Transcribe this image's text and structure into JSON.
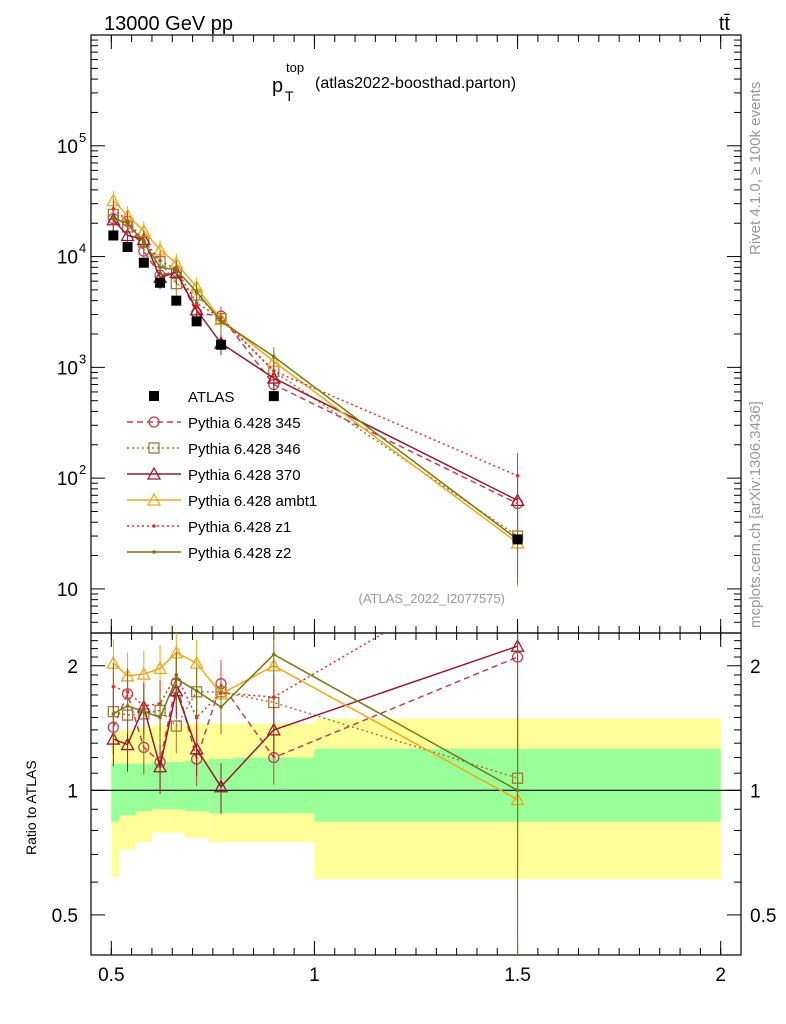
{
  "header": {
    "left": "13000 GeV pp",
    "right": "tt̄",
    "title_main": "p",
    "title_sub": "T",
    "title_sup": "top",
    "title_rest": "(atlas2022-boosthad.parton)"
  },
  "side": {
    "rivet": "Rivet 4.1.0, ≥ 100k events",
    "mcplots": "mcplots.cern.ch [arXiv:1306.3436]"
  },
  "reference": "(ATLAS_2022_I2077575)",
  "ratio_label": "Ratio to ATLAS",
  "chart_data": {
    "type": "line",
    "title": "p_T^top (atlas2022-boosthad.parton)",
    "xlabel": "",
    "ylabel": "",
    "x_axis": {
      "range": [
        0.45,
        2.05
      ],
      "ticks": [
        0.5,
        1,
        1.5,
        2
      ],
      "tick_labels": [
        "0.5",
        "1",
        "1.5",
        "2"
      ]
    },
    "y_axis_main": {
      "scale": "log",
      "range": [
        4,
        1000000
      ],
      "ticks": [
        10,
        100,
        1000,
        10000,
        100000
      ],
      "tick_labels": [
        "10",
        "10^2",
        "10^3",
        "10^4",
        "10^5"
      ]
    },
    "y_axis_ratio": {
      "scale": "log",
      "range": [
        0.4,
        2.4
      ],
      "ticks": [
        0.5,
        1,
        2
      ],
      "tick_labels": [
        "0.5",
        "1",
        "2"
      ]
    },
    "x": [
      0.505,
      0.54,
      0.58,
      0.62,
      0.66,
      0.71,
      0.77,
      0.9,
      1.5
    ],
    "bin_edges": [
      0.5,
      0.52,
      0.56,
      0.6,
      0.64,
      0.68,
      0.74,
      0.8,
      1.0,
      2.0
    ],
    "data": {
      "name": "ATLAS",
      "values": [
        15500,
        12200,
        8800,
        5800,
        4000,
        2600,
        1600,
        550,
        28
      ]
    },
    "band": {
      "inner": [
        [
          0.84,
          1.16
        ],
        [
          0.87,
          1.16
        ],
        [
          0.89,
          1.16
        ],
        [
          0.9,
          1.17
        ],
        [
          0.9,
          1.17
        ],
        [
          0.89,
          1.18
        ],
        [
          0.88,
          1.19
        ],
        [
          0.88,
          1.2
        ],
        [
          0.84,
          1.26
        ]
      ],
      "outer": [
        [
          0.62,
          1.38
        ],
        [
          0.72,
          1.4
        ],
        [
          0.75,
          1.42
        ],
        [
          0.79,
          1.44
        ],
        [
          0.79,
          1.44
        ],
        [
          0.77,
          1.45
        ],
        [
          0.75,
          1.45
        ],
        [
          0.75,
          1.45
        ],
        [
          0.61,
          1.49
        ]
      ]
    },
    "series": [
      {
        "name": "Pythia 6.428 345",
        "color": "#c0404f",
        "marker": "circle",
        "dash": "6,4",
        "values": [
          22000,
          20800,
          11200,
          6800,
          7300,
          3100,
          2900,
          700,
          59
        ],
        "ratio": [
          1.42,
          1.71,
          1.27,
          1.17,
          1.82,
          1.19,
          1.81,
          1.2,
          2.1
        ]
      },
      {
        "name": "Pythia 6.428 346",
        "color": "#a07838",
        "marker": "square",
        "dash": "2,3",
        "values": [
          24000,
          18500,
          13500,
          9000,
          5700,
          4500,
          2750,
          920,
          30
        ],
        "ratio": [
          1.55,
          1.52,
          1.53,
          1.56,
          1.43,
          1.73,
          1.73,
          1.63,
          1.07
        ]
      },
      {
        "name": "Pythia 6.428 370",
        "color": "#9a1830",
        "marker": "triangle",
        "dash": "",
        "values": [
          21500,
          15500,
          14300,
          6500,
          7200,
          3300,
          1650,
          800,
          63
        ],
        "ratio": [
          1.33,
          1.29,
          1.59,
          1.14,
          1.74,
          1.26,
          1.02,
          1.4,
          2.23
        ]
      },
      {
        "name": "Pythia 6.428 ambt1",
        "color": "#f0a818",
        "marker": "triangle",
        "dash": "",
        "values": [
          32000,
          23500,
          17000,
          11500,
          8700,
          5300,
          2700,
          1130,
          26
        ],
        "ratio": [
          2.03,
          1.89,
          1.91,
          1.97,
          2.15,
          2.03,
          1.71,
          2.0,
          0.95
        ]
      },
      {
        "name": "Pythia 6.428 z1",
        "color": "#e03020",
        "marker": "dot",
        "dash": "2,3",
        "values": [
          27000,
          21000,
          14000,
          9200,
          7600,
          3800,
          2800,
          930,
          105
        ],
        "ratio": [
          1.78,
          1.73,
          1.6,
          1.62,
          1.9,
          1.5,
          1.72,
          1.68,
          3.7
        ]
      },
      {
        "name": "Pythia 6.428 z2",
        "color": "#787810",
        "marker": "dot",
        "dash": "",
        "values": [
          22000,
          20000,
          13500,
          8000,
          7600,
          4800,
          2600,
          1250,
          28
        ],
        "ratio": [
          1.53,
          1.6,
          1.55,
          1.5,
          1.86,
          1.74,
          1.59,
          2.13,
          1.0
        ]
      }
    ],
    "legend_position": "bottom-left"
  }
}
